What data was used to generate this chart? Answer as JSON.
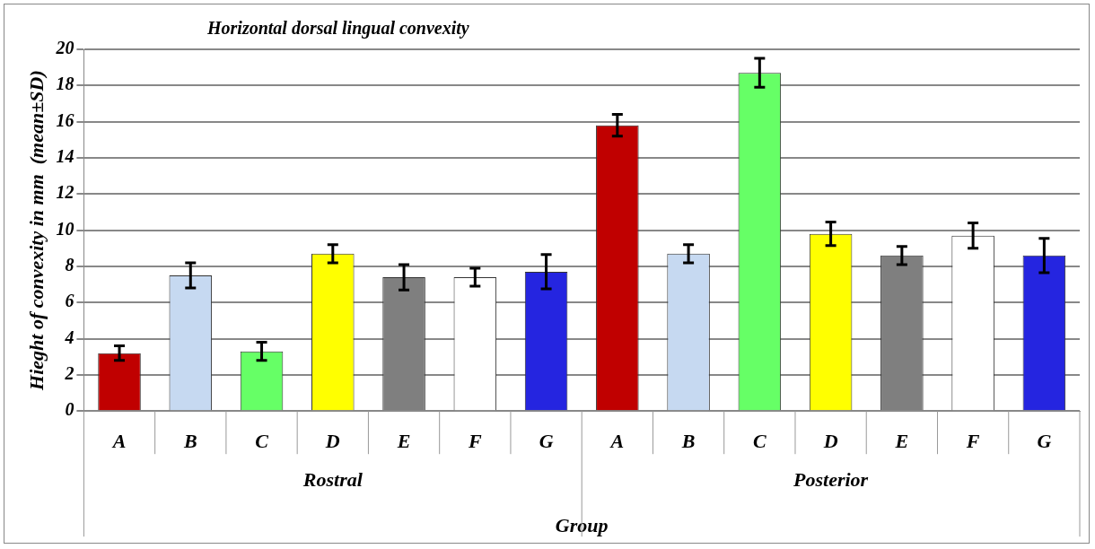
{
  "chart_data": {
    "type": "bar",
    "title": "Horizontal dorsal lingual convexity",
    "xlabel": "Group",
    "ylabel": "Hieght of convexity in mm  (mean±SD)",
    "categories": [
      "A",
      "B",
      "C",
      "D",
      "E",
      "F",
      "G",
      "A",
      "B",
      "C",
      "D",
      "E",
      "F",
      "G"
    ],
    "values": [
      3.2,
      7.5,
      3.3,
      8.7,
      7.4,
      7.4,
      7.7,
      15.8,
      8.7,
      18.7,
      9.8,
      8.6,
      9.7,
      8.6
    ],
    "errors": [
      0.4,
      0.7,
      0.5,
      0.5,
      0.7,
      0.5,
      0.95,
      0.6,
      0.5,
      0.8,
      0.65,
      0.5,
      0.7,
      0.95
    ],
    "colors": [
      "#c00000",
      "#c6d9f1",
      "#66ff66",
      "#ffff00",
      "#7f7f7f",
      "#ffffff",
      "#2525e0",
      "#c00000",
      "#c6d9f1",
      "#66ff66",
      "#ffff00",
      "#7f7f7f",
      "#ffffff",
      "#2525e0"
    ],
    "annotations": [
      "Rostral",
      "Posterior"
    ],
    "ylim": [
      0,
      20
    ],
    "yticks": [
      0,
      2,
      4,
      6,
      8,
      10,
      12,
      14,
      16,
      18,
      20
    ],
    "grid": "y",
    "legend": false
  }
}
